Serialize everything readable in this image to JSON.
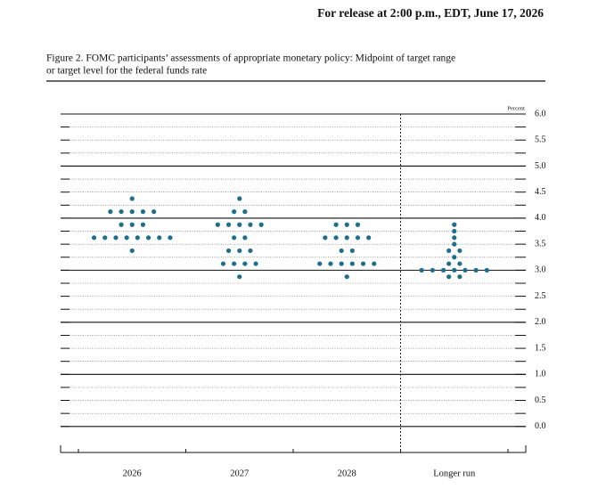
{
  "release_note": "For release at 2:00 p.m., EDT, June 17, 2026",
  "chart_data": {
    "type": "dot",
    "title_lines": [
      "Figure 2. FOMC participants’ assessments of appropriate monetary policy: Midpoint of target range",
      "or target level for the federal funds rate"
    ],
    "y_label": "Percent",
    "categories": [
      "2026",
      "2027",
      "2028",
      "Longer run"
    ],
    "values": [
      [
        4.375,
        4.125,
        3.875,
        3.625,
        3.375
      ],
      [
        4.375,
        4.125,
        3.875,
        3.625,
        3.375,
        3.125,
        2.875
      ],
      [
        3.875,
        3.625,
        3.375,
        3.125,
        2.875
      ],
      [
        3.875,
        3.75,
        3.625,
        3.5,
        3.375,
        3.25,
        3.125,
        3.0,
        2.875
      ]
    ],
    "counts": [
      [
        1,
        5,
        3,
        8,
        1
      ],
      [
        1,
        2,
        5,
        2,
        3,
        4,
        1
      ],
      [
        3,
        5,
        2,
        6,
        1
      ],
      [
        1,
        1,
        1,
        1,
        2,
        1,
        2,
        7,
        2
      ]
    ],
    "color": "#1f6e8c",
    "ylim": [
      -0.5,
      6.0
    ],
    "yticks": [
      {
        "value": 0,
        "label": "0.0"
      },
      0.5,
      {
        "value": 1,
        "label": "1.0"
      },
      1.5,
      {
        "value": 2,
        "label": "2.0"
      },
      2.5,
      {
        "value": 3,
        "label": "3.0"
      },
      3.5,
      {
        "value": 4,
        "label": "4.0"
      },
      4.5,
      {
        "value": 5,
        "label": "5.0"
      },
      5.5,
      {
        "value": 6,
        "label": "6.0"
      }
    ]
  }
}
